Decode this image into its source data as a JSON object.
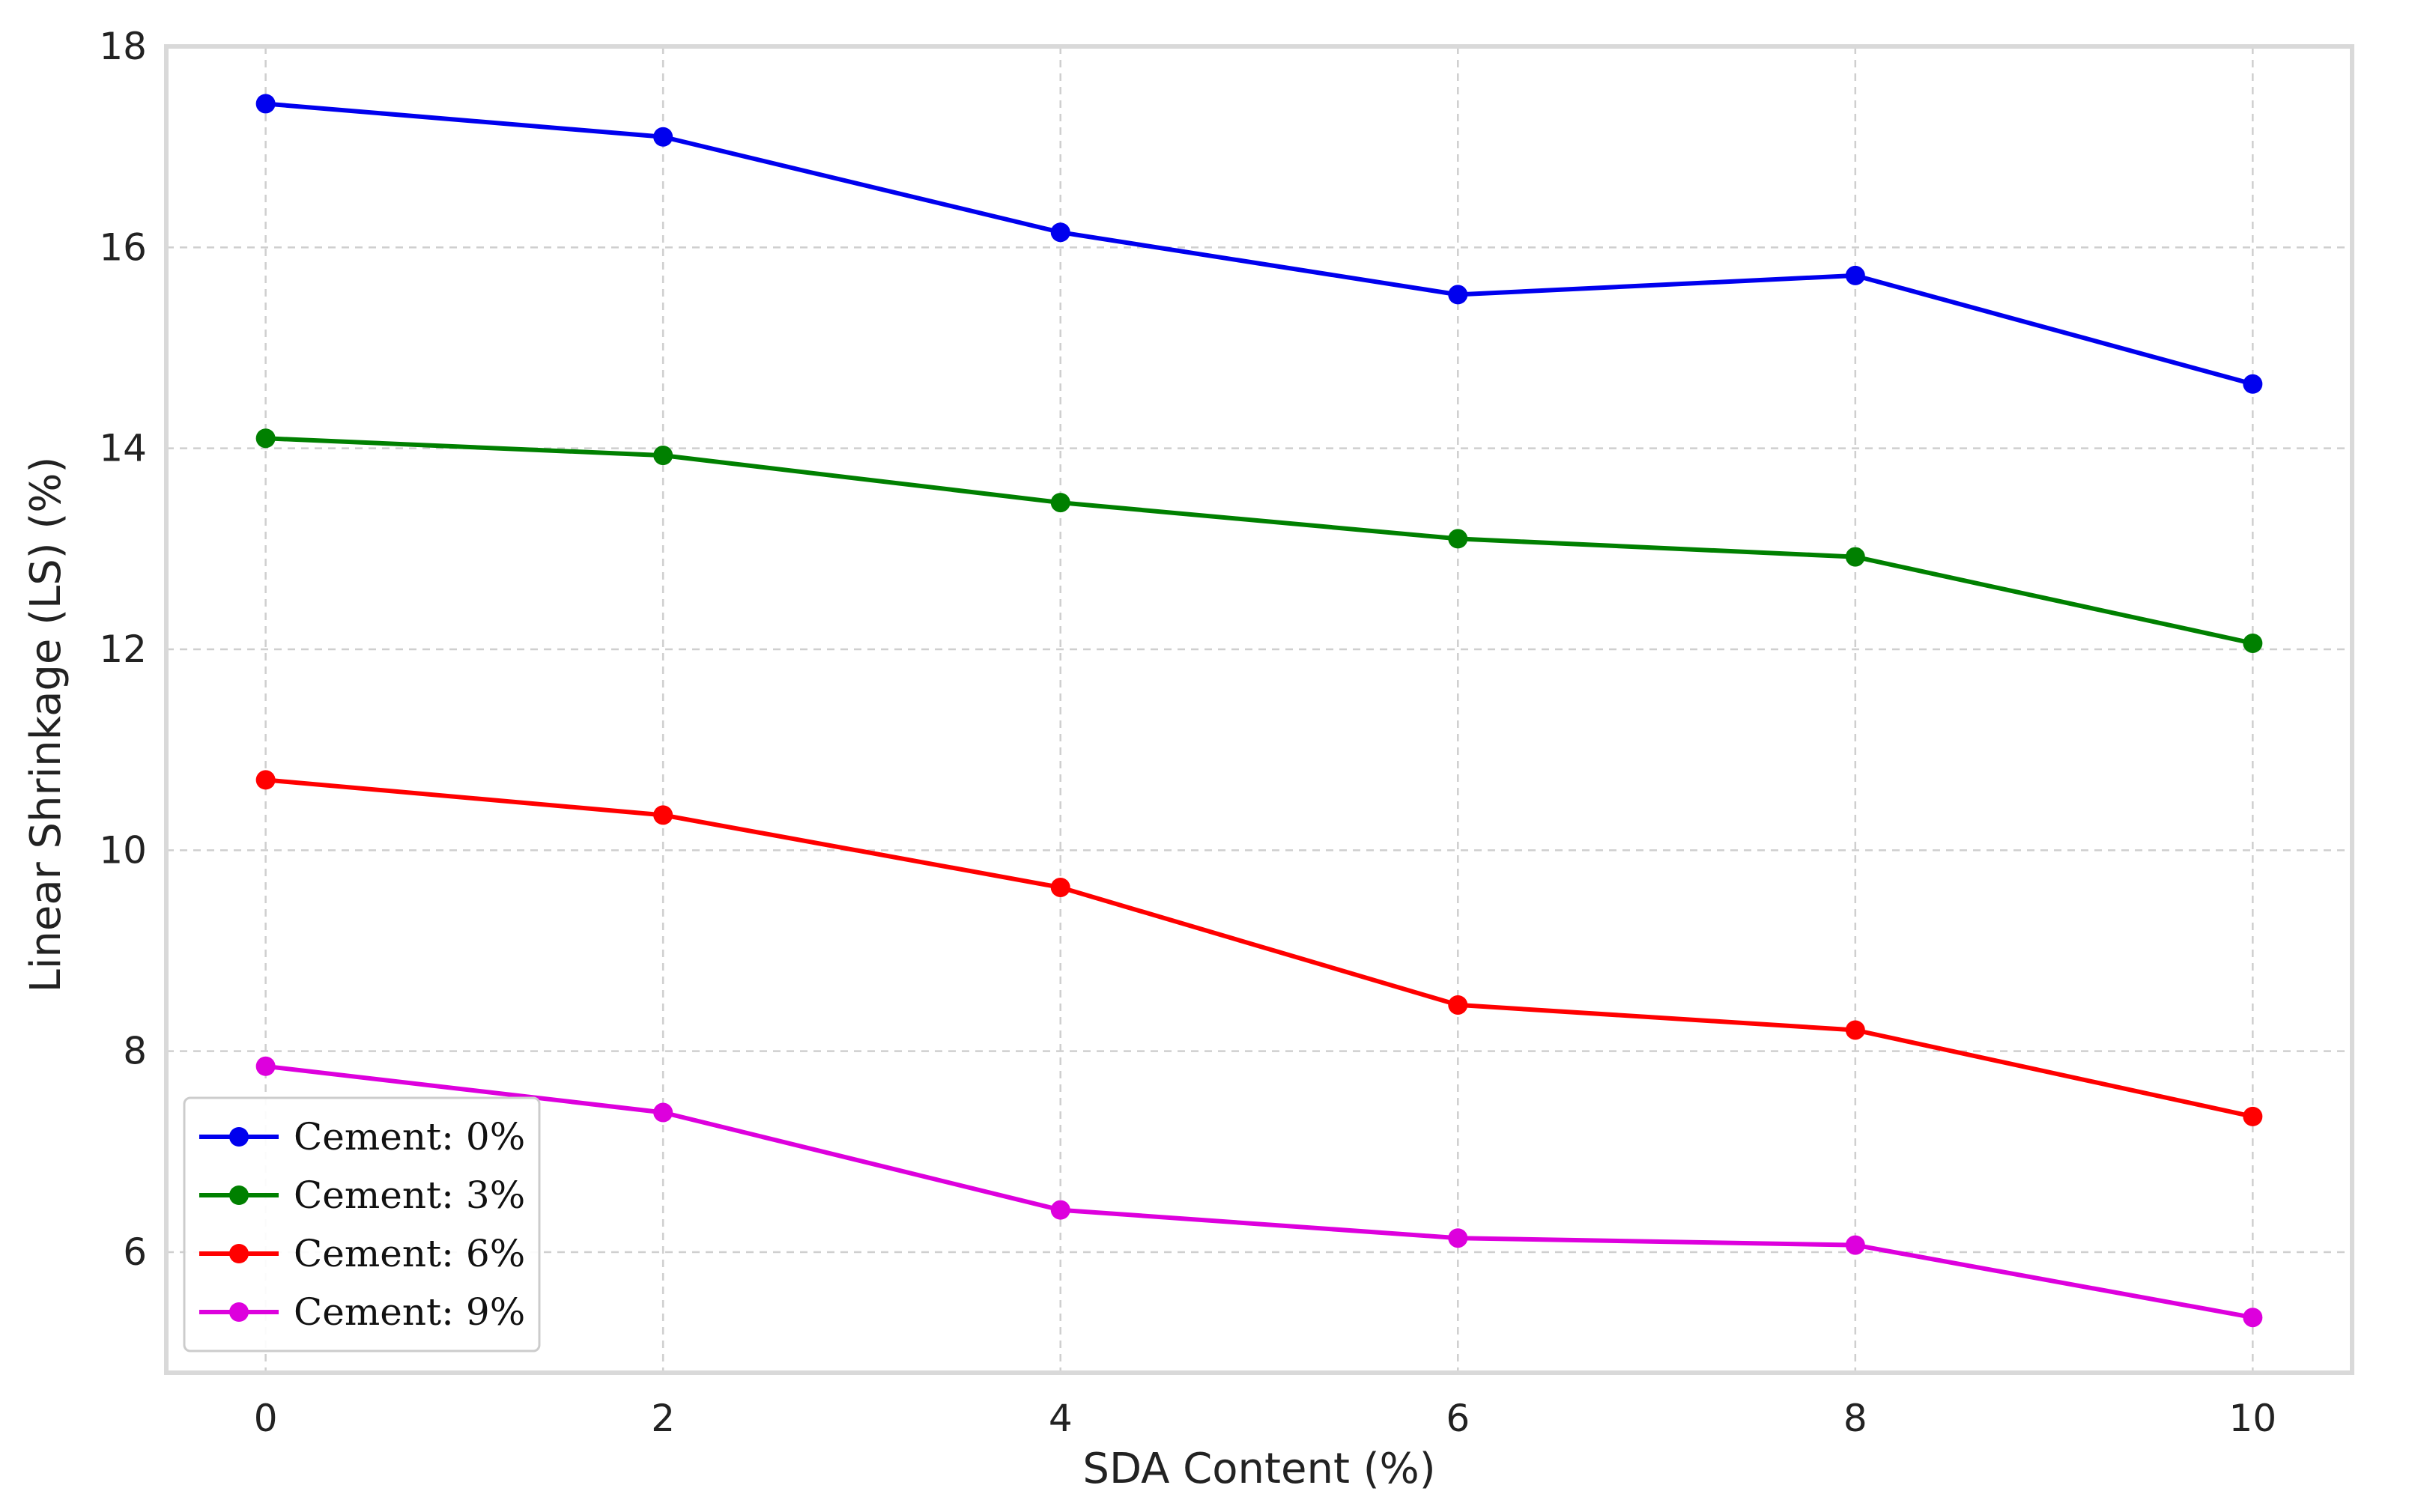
{
  "chart_data": {
    "type": "line",
    "title": "",
    "xlabel": "SDA Content (%)",
    "ylabel": "Linear Shrinkage (LS) (%)",
    "x": [
      0,
      2,
      4,
      6,
      8,
      10
    ],
    "xlim": [
      -0.5,
      10.5
    ],
    "ylim": [
      4.8,
      18
    ],
    "xticks": [
      0,
      2,
      4,
      6,
      8,
      10
    ],
    "yticks": [
      6,
      8,
      10,
      12,
      14,
      16,
      18
    ],
    "grid": true,
    "legend_position": "bottom-left",
    "series": [
      {
        "name": "Cement: 0%",
        "color": "#0000ee",
        "values": [
          17.43,
          17.1,
          16.15,
          15.53,
          15.72,
          14.64
        ]
      },
      {
        "name": "Cement: 3%",
        "color": "#008000",
        "values": [
          14.1,
          13.93,
          13.46,
          13.1,
          12.92,
          12.06
        ]
      },
      {
        "name": "Cement: 6%",
        "color": "#ff0000",
        "values": [
          10.7,
          10.35,
          9.63,
          8.46,
          8.21,
          7.35
        ]
      },
      {
        "name": "Cement: 9%",
        "color": "#dd00dd",
        "values": [
          7.85,
          7.39,
          6.42,
          6.14,
          6.07,
          5.35
        ]
      }
    ]
  }
}
